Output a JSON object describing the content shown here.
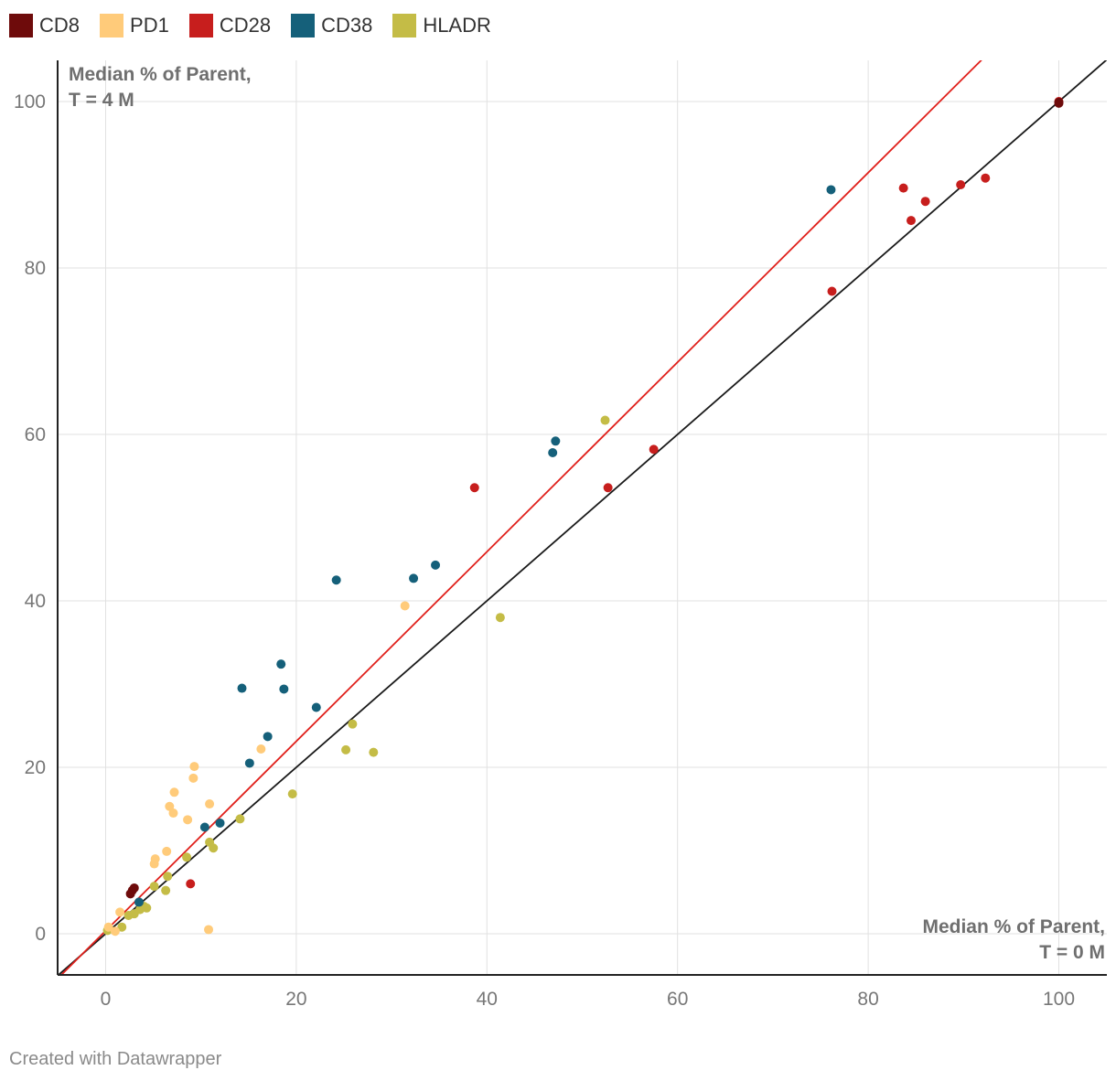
{
  "legend": [
    {
      "label": "CD8",
      "color": "#6e0b0b"
    },
    {
      "label": "PD1",
      "color": "#ffcb7a"
    },
    {
      "label": "CD28",
      "color": "#c71e1d"
    },
    {
      "label": "CD38",
      "color": "#15607a"
    },
    {
      "label": "HLADR",
      "color": "#c4bc46"
    }
  ],
  "credit": "Created with Datawrapper",
  "chart_data": {
    "type": "scatter",
    "title": "",
    "x_axis_title": [
      "Median % of Parent,",
      "T = 0 M"
    ],
    "y_axis_title": [
      "Median % of Parent,",
      "T = 4 M"
    ],
    "xlim": [
      -5,
      105
    ],
    "ylim": [
      -5,
      105
    ],
    "x_ticks": [
      0,
      20,
      40,
      60,
      80,
      100
    ],
    "y_ticks": [
      0,
      20,
      40,
      60,
      80,
      100
    ],
    "grid": true,
    "reference_lines": [
      {
        "name": "identity",
        "color": "#1a1a1a",
        "points": [
          [
            -5,
            -5
          ],
          [
            105,
            105
          ]
        ]
      },
      {
        "name": "fit",
        "color": "#e0201b",
        "points": [
          [
            -4.7,
            -5
          ],
          [
            91.9,
            105
          ]
        ]
      }
    ],
    "series": [
      {
        "name": "CD8",
        "color": "#6e0b0b",
        "points": [
          [
            2.8,
            5.2
          ],
          [
            2.6,
            4.8
          ],
          [
            3.0,
            5.5
          ],
          [
            100,
            99.8
          ],
          [
            100,
            99.9
          ]
        ]
      },
      {
        "name": "PD1",
        "color": "#ffcb7a",
        "points": [
          [
            0.3,
            0.8
          ],
          [
            1.0,
            0.3
          ],
          [
            1.5,
            2.6
          ],
          [
            5.2,
            9.0
          ],
          [
            5.1,
            8.4
          ],
          [
            6.4,
            9.9
          ],
          [
            6.7,
            15.3
          ],
          [
            7.1,
            14.5
          ],
          [
            7.2,
            17.0
          ],
          [
            8.6,
            13.7
          ],
          [
            9.2,
            18.7
          ],
          [
            9.3,
            20.1
          ],
          [
            10.9,
            15.6
          ],
          [
            10.8,
            0.5
          ],
          [
            16.3,
            22.2
          ],
          [
            31.4,
            39.4
          ]
        ]
      },
      {
        "name": "CD28",
        "color": "#c71e1d",
        "points": [
          [
            8.9,
            6.0
          ],
          [
            38.7,
            53.6
          ],
          [
            52.7,
            53.6
          ],
          [
            57.5,
            58.2
          ],
          [
            76.2,
            77.2
          ],
          [
            83.7,
            89.6
          ],
          [
            84.5,
            85.7
          ],
          [
            86.0,
            88.0
          ],
          [
            89.7,
            90.0
          ],
          [
            92.3,
            90.8
          ],
          [
            100,
            100
          ]
        ]
      },
      {
        "name": "CD38",
        "color": "#15607a",
        "points": [
          [
            3.5,
            3.8
          ],
          [
            10.4,
            12.8
          ],
          [
            12.0,
            13.3
          ],
          [
            14.3,
            29.5
          ],
          [
            15.1,
            20.5
          ],
          [
            17.0,
            23.7
          ],
          [
            18.4,
            32.4
          ],
          [
            18.7,
            29.4
          ],
          [
            22.1,
            27.2
          ],
          [
            24.2,
            42.5
          ],
          [
            32.3,
            42.7
          ],
          [
            34.6,
            44.3
          ],
          [
            46.9,
            57.8
          ],
          [
            47.2,
            59.2
          ],
          [
            76.1,
            89.4
          ]
        ]
      },
      {
        "name": "HLADR",
        "color": "#c4bc46",
        "points": [
          [
            0.2,
            0.4
          ],
          [
            1.7,
            0.8
          ],
          [
            2.4,
            2.2
          ],
          [
            3.0,
            2.4
          ],
          [
            3.6,
            2.9
          ],
          [
            4.0,
            3.3
          ],
          [
            4.3,
            3.1
          ],
          [
            5.1,
            5.7
          ],
          [
            6.3,
            5.2
          ],
          [
            6.5,
            6.9
          ],
          [
            8.5,
            9.2
          ],
          [
            10.9,
            11.0
          ],
          [
            11.3,
            10.3
          ],
          [
            14.1,
            13.8
          ],
          [
            19.6,
            16.8
          ],
          [
            25.2,
            22.1
          ],
          [
            25.9,
            25.2
          ],
          [
            28.1,
            21.8
          ],
          [
            41.4,
            38.0
          ],
          [
            52.4,
            61.7
          ]
        ]
      }
    ]
  }
}
